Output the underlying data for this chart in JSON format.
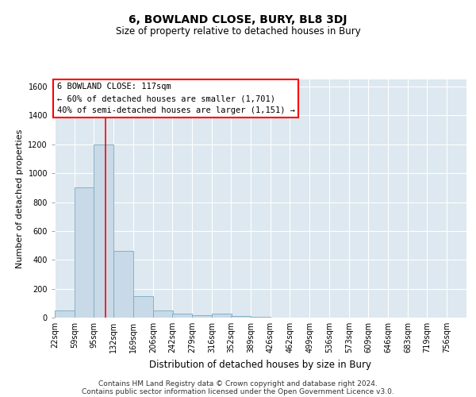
{
  "title": "6, BOWLAND CLOSE, BURY, BL8 3DJ",
  "subtitle": "Size of property relative to detached houses in Bury",
  "xlabel": "Distribution of detached houses by size in Bury",
  "ylabel": "Number of detached properties",
  "footer_line1": "Contains HM Land Registry data © Crown copyright and database right 2024.",
  "footer_line2": "Contains public sector information licensed under the Open Government Licence v3.0.",
  "annotation_line1": "6 BOWLAND CLOSE: 117sqm",
  "annotation_line2": "← 60% of detached houses are smaller (1,701)",
  "annotation_line3": "40% of semi-detached houses are larger (1,151) →",
  "bar_color": "#c8d9e8",
  "bar_edge_color": "#7aaabf",
  "bg_color": "#dde8f0",
  "red_line_color": "red",
  "categories": [
    "22sqm",
    "59sqm",
    "95sqm",
    "132sqm",
    "169sqm",
    "206sqm",
    "242sqm",
    "279sqm",
    "316sqm",
    "352sqm",
    "389sqm",
    "426sqm",
    "462sqm",
    "499sqm",
    "536sqm",
    "573sqm",
    "609sqm",
    "646sqm",
    "683sqm",
    "719sqm",
    "756sqm"
  ],
  "bin_edges": [
    22,
    59,
    95,
    132,
    169,
    206,
    242,
    279,
    316,
    352,
    389,
    426,
    462,
    499,
    536,
    573,
    609,
    646,
    683,
    719,
    756
  ],
  "bar_heights": [
    50,
    900,
    1200,
    460,
    150,
    50,
    25,
    15,
    30,
    10,
    5,
    0,
    0,
    0,
    0,
    0,
    0,
    0,
    0,
    0,
    0
  ],
  "ylim": [
    0,
    1650
  ],
  "yticks": [
    0,
    200,
    400,
    600,
    800,
    1000,
    1200,
    1400,
    1600
  ],
  "annotation_box_color": "white",
  "annotation_box_edge": "red",
  "title_fontsize": 10,
  "subtitle_fontsize": 8.5,
  "ylabel_fontsize": 8,
  "xlabel_fontsize": 8.5,
  "tick_fontsize": 7,
  "footer_fontsize": 6.5,
  "annotation_fontsize": 7.5
}
